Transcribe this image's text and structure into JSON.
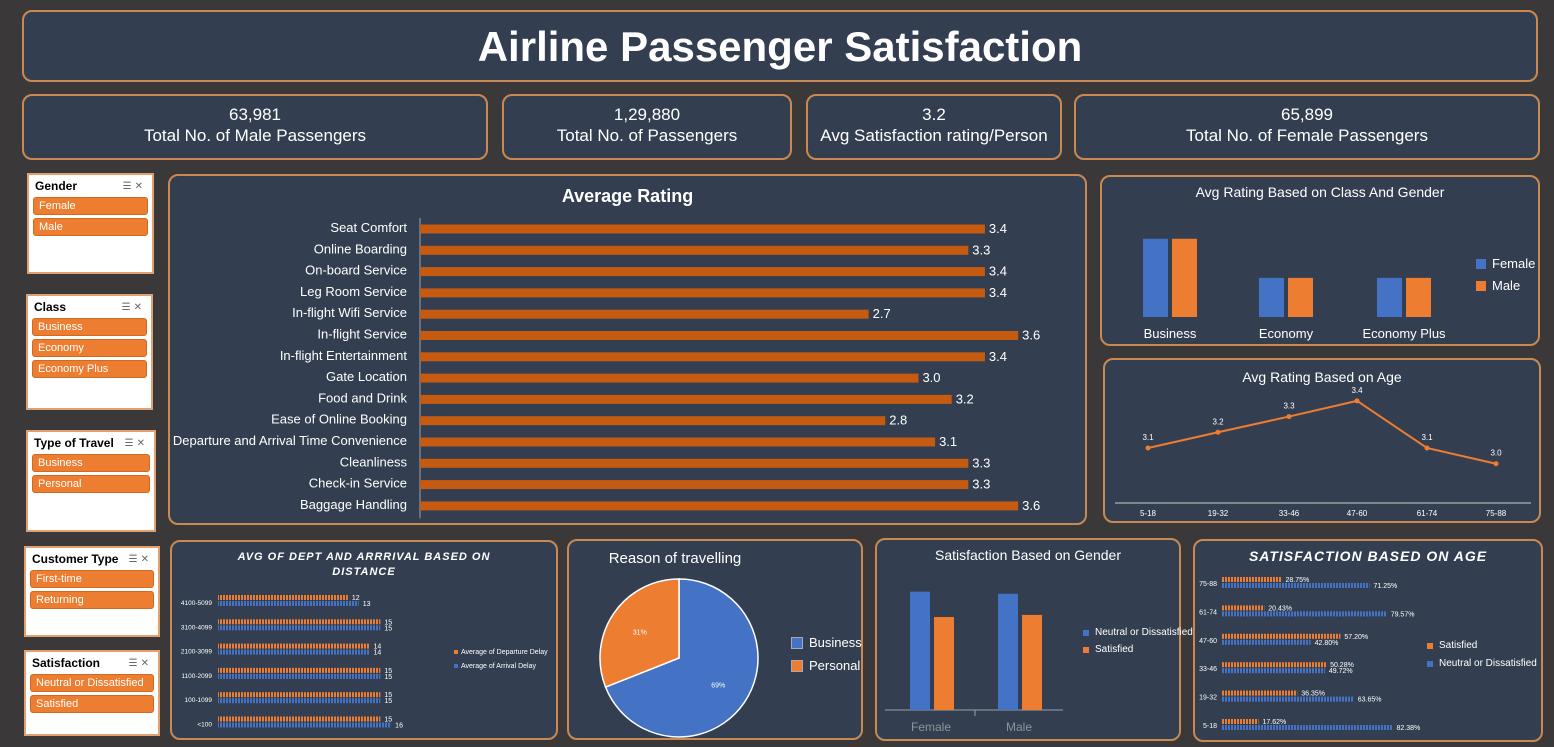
{
  "title": "Airline Passenger Satisfaction",
  "kpis": [
    {
      "value": "63,981",
      "label": "Total No. of Male Passengers"
    },
    {
      "value": "1,29,880",
      "label": "Total No. of Passengers"
    },
    {
      "value": "3.2",
      "label": "Avg Satisfaction rating/Person"
    },
    {
      "value": "65,899",
      "label": "Total No. of Female Passengers"
    }
  ],
  "slicers": [
    {
      "title": "Gender",
      "items": [
        "Female",
        "Male"
      ]
    },
    {
      "title": "Class",
      "items": [
        "Business",
        "Economy",
        "Economy Plus"
      ]
    },
    {
      "title": "Type of Travel",
      "items": [
        "Business",
        "Personal"
      ]
    },
    {
      "title": "Customer Type",
      "items": [
        "First-time",
        "Returning"
      ]
    },
    {
      "title": "Satisfaction",
      "items": [
        "Neutral or Dissatisfied",
        "Satisfied"
      ]
    }
  ],
  "colors": {
    "orange": "#ed7d31",
    "blue": "#4472c4",
    "panel": "#333f50",
    "border": "#c88a52"
  },
  "chart_data": [
    {
      "id": "avg-rating",
      "type": "bar",
      "title": "Average Rating",
      "orientation": "horizontal",
      "categories": [
        "Seat Comfort",
        "Online Boarding",
        "On-board Service",
        "Leg Room Service",
        "In-flight Wifi Service",
        "In-flight Service",
        "In-flight Entertainment",
        "Gate Location",
        "Food and Drink",
        "Ease of Online Booking",
        "Departure and Arrival Time Convenience",
        "Cleanliness",
        "Check-in Service",
        "Baggage Handling"
      ],
      "values": [
        3.4,
        3.3,
        3.4,
        3.4,
        2.7,
        3.6,
        3.4,
        3.0,
        3.2,
        2.8,
        3.1,
        3.3,
        3.3,
        3.6
      ],
      "labels": [
        "3.4",
        "3.3",
        "3.4",
        "3.4",
        "2.7",
        "3.6",
        "3.4",
        "3.0",
        "3.2",
        "2.8",
        "3.1",
        "3.3",
        "3.3",
        "3.6"
      ],
      "xlim": [
        0,
        3.9
      ]
    },
    {
      "id": "class-gender",
      "type": "bar",
      "title": "Avg Rating Based on Class And Gender",
      "categories": [
        "Business",
        "Economy",
        "Economy Plus"
      ],
      "series": [
        {
          "name": "Female",
          "values": [
            3.6,
            2.9,
            2.9
          ]
        },
        {
          "name": "Male",
          "values": [
            3.6,
            2.9,
            2.9
          ]
        }
      ],
      "ylim": [
        2.2,
        3.9
      ],
      "legend": "right"
    },
    {
      "id": "rating-age",
      "type": "line",
      "title": "Avg Rating Based on Age",
      "categories": [
        "5-18",
        "19-32",
        "33-46",
        "47-60",
        "61-74",
        "75-88"
      ],
      "values": [
        3.1,
        3.2,
        3.3,
        3.4,
        3.1,
        3.0
      ],
      "labels": [
        "3.1",
        "3.2",
        "3.3",
        "3.4",
        "3.1",
        "3.0"
      ],
      "ylim": [
        2.75,
        3.45
      ]
    },
    {
      "id": "delay-distance",
      "type": "bar",
      "title": "AVG OF DEPT AND ARRRIVAL BASED ON DISTANCE",
      "orientation": "horizontal",
      "categories": [
        "4100-5099",
        "3100-4099",
        "2100-3099",
        "1100-2099",
        "100-1099",
        "<100"
      ],
      "series": [
        {
          "name": "Average of Departure Delay",
          "values": [
            12,
            15,
            14,
            15,
            15,
            15
          ]
        },
        {
          "name": "Average of Arrival Delay",
          "values": [
            13,
            15,
            14,
            15,
            15,
            16
          ]
        }
      ],
      "xlim": [
        0,
        17
      ],
      "legend": "right"
    },
    {
      "id": "reason-travel",
      "type": "pie",
      "title": "Reason of  travelling",
      "categories": [
        "Business",
        "Personal"
      ],
      "values": [
        69,
        31
      ],
      "labels": [
        "69%",
        "31%"
      ],
      "legend": "right"
    },
    {
      "id": "sat-gender",
      "type": "bar",
      "title": "Satisfaction Based on Gender",
      "categories": [
        "Female",
        "Male"
      ],
      "series": [
        {
          "name": "Neutral or Dissatisfied",
          "values": [
            56,
            55
          ]
        },
        {
          "name": "Satisfied",
          "values": [
            44,
            45
          ]
        }
      ],
      "ylim": [
        0,
        62
      ],
      "legend": "right"
    },
    {
      "id": "sat-age",
      "type": "bar",
      "title": "SATISFACTION BASED ON AGE",
      "orientation": "horizontal",
      "categories": [
        "75-88",
        "61-74",
        "47-60",
        "33-46",
        "19-32",
        "5-18"
      ],
      "series": [
        {
          "name": "Satisfied",
          "values": [
            28.75,
            20.43,
            57.2,
            50.28,
            36.35,
            17.62
          ],
          "labels": [
            "28.75%",
            "20.43%",
            "57.20%",
            "50.28%",
            "36.35%",
            "17.62%"
          ]
        },
        {
          "name": "Neutral or Dissatisfied",
          "values": [
            71.25,
            79.57,
            42.8,
            49.72,
            63.65,
            82.38
          ],
          "labels": [
            "71.25%",
            "79.57%",
            "42.80%",
            "49.72%",
            "63.65%",
            "82.38%"
          ]
        }
      ],
      "xlim": [
        0,
        100
      ],
      "legend": "right"
    }
  ]
}
